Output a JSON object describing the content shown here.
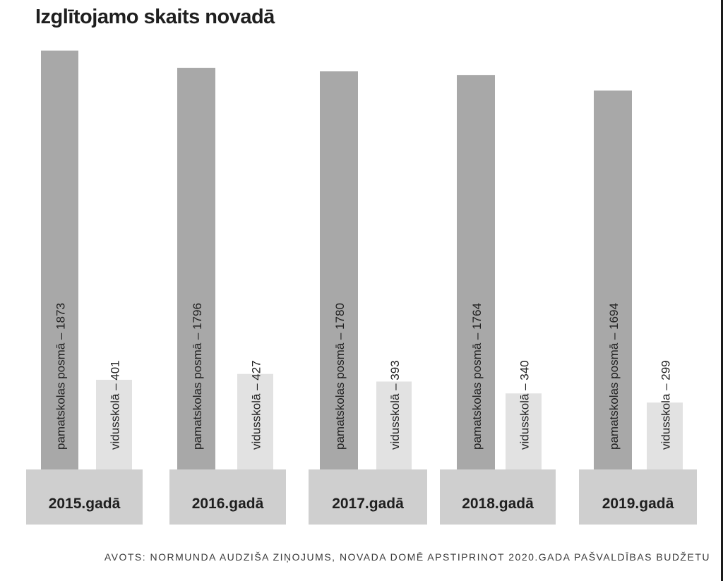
{
  "title": "Izglītojamo skaits novadā",
  "source": "AVOTS: NORMUNDA AUDZIŠA ZIŅOJUMS, NOVADA DOMĒ APSTIPRINOT 2020.GADA PAŠVALDĪBAS BUDŽETU",
  "colors": {
    "primary_bar": "#a8a8a8",
    "secondary_bar": "#e2e2e2",
    "base_block": "#cfcfcf",
    "text": "#1f1f1f"
  },
  "chart_data": {
    "type": "bar",
    "title": "Izglītojamo skaits novadā",
    "categories": [
      "2015.gadā",
      "2016.gadā",
      "2017.gadā",
      "2018.gadā",
      "2019.gadā"
    ],
    "series": [
      {
        "values": [
          1873,
          1796,
          1780,
          1764,
          1694
        ],
        "labels": [
          "pamatskolas posmā – 1873",
          "pamatskolas posmā – 1796",
          "pamatskolas  posmā – 1780",
          "pamatskolas posmā – 1764",
          "pamatskolas posmā – 1694"
        ]
      },
      {
        "values": [
          401,
          427,
          393,
          340,
          299
        ],
        "labels": [
          "vidusskolā – 401",
          "vidusskolā – 427",
          "vidusskolā – 393",
          "vidusskolā – 340",
          "vidusskola – 299"
        ]
      }
    ],
    "xlabel": "",
    "ylabel": "",
    "grid": false,
    "legend": "none"
  }
}
